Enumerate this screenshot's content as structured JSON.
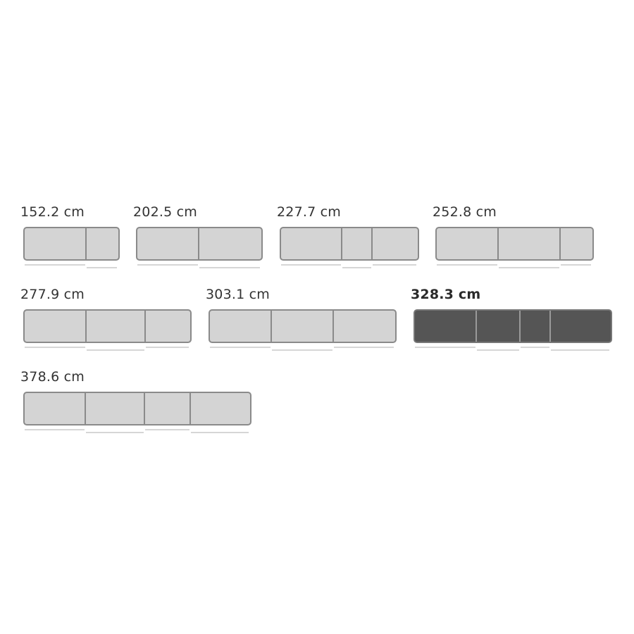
{
  "colors": {
    "default_fill": "#d4d4d4",
    "selected_fill": "#555555",
    "outline": "#8a8a8a"
  },
  "options": [
    {
      "label": "152.2 cm",
      "selected": false
    },
    {
      "label": "202.5 cm",
      "selected": false
    },
    {
      "label": "227.7 cm",
      "selected": false
    },
    {
      "label": "252.8 cm",
      "selected": false
    },
    {
      "label": "277.9 cm",
      "selected": false
    },
    {
      "label": "303.1 cm",
      "selected": false
    },
    {
      "label": "328.3 cm",
      "selected": true
    },
    {
      "label": "378.6 cm",
      "selected": false
    }
  ]
}
